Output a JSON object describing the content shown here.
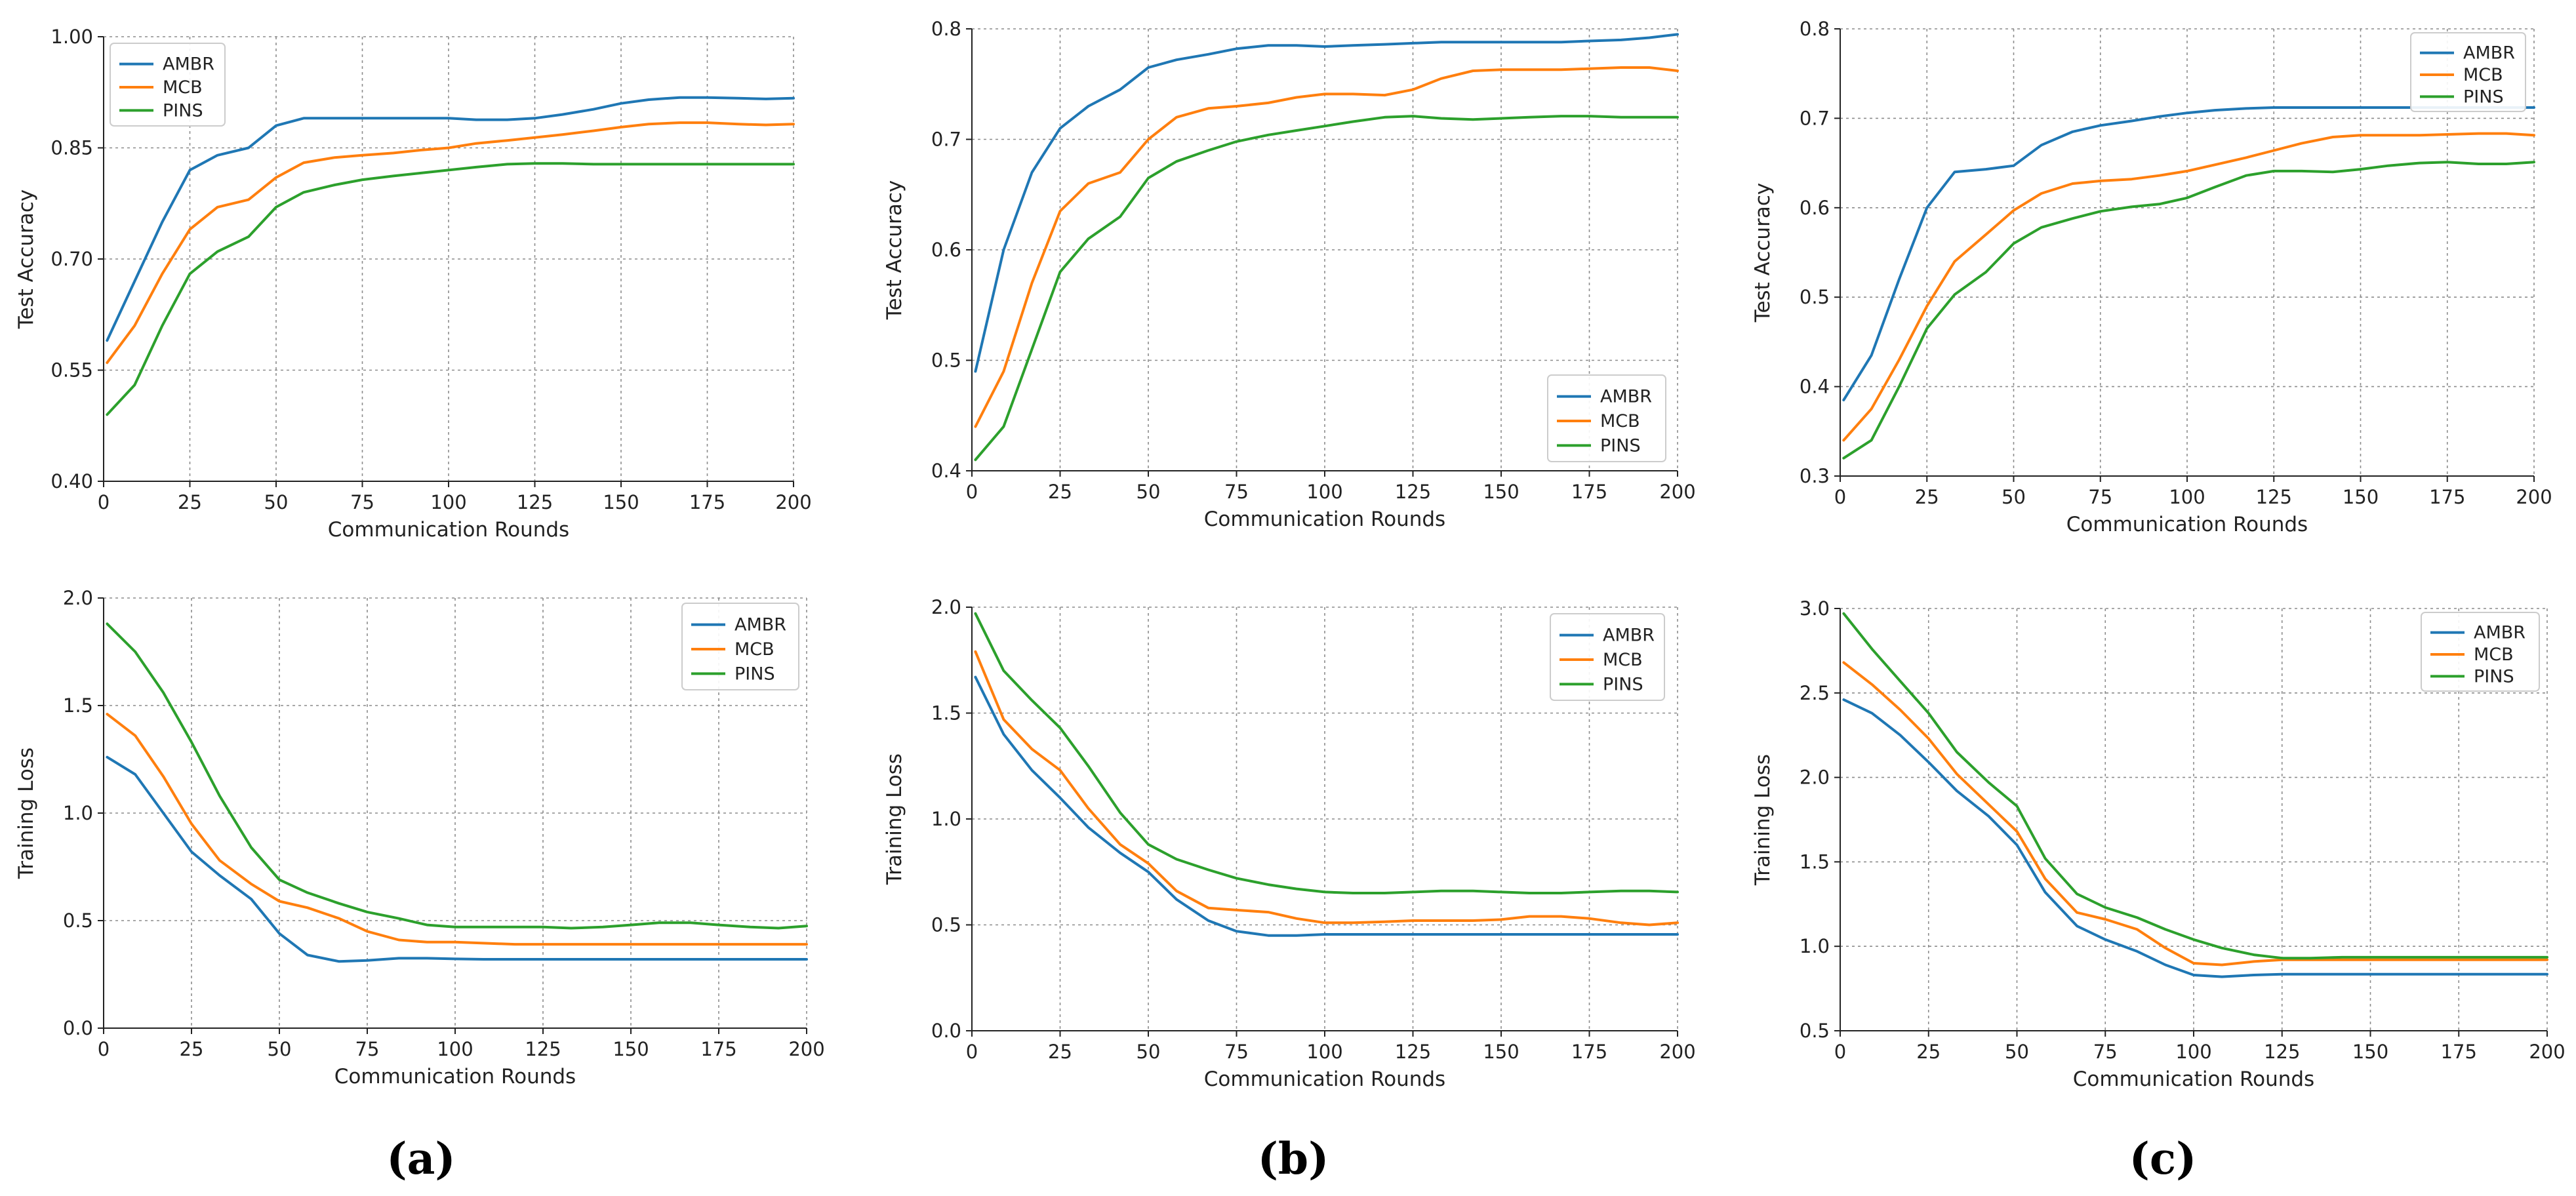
{
  "figure": {
    "captions": [
      "(a)",
      "(b)",
      "(c)"
    ]
  },
  "colors": {
    "AMBR": "#1f77b4",
    "MCB": "#ff7f0e",
    "PINS": "#2ca02c"
  },
  "chart_data": [
    {
      "id": "a-top",
      "type": "line",
      "title": "",
      "xlabel": "Communication Rounds",
      "ylabel": "Test Accuracy",
      "xlim": [
        0,
        200
      ],
      "ylim": [
        0.4,
        1.0
      ],
      "xticks": [
        0,
        25,
        50,
        75,
        100,
        125,
        150,
        175,
        200
      ],
      "xtick_labels": [
        "0",
        "25",
        "50",
        "75",
        "100",
        "125",
        "150",
        "175",
        "200"
      ],
      "yticks": [
        0.4,
        0.55,
        0.7,
        0.85,
        1.0
      ],
      "ytick_labels": [
        "0.40",
        "0.55",
        "0.70",
        "0.85",
        "1.00"
      ],
      "grid": true,
      "legend": "top-left",
      "x": [
        1,
        9,
        17,
        25,
        33,
        42,
        50,
        58,
        67,
        75,
        84,
        92,
        100,
        108,
        117,
        125,
        133,
        142,
        150,
        158,
        167,
        175,
        184,
        192,
        200
      ],
      "series": [
        {
          "name": "AMBR",
          "values": [
            0.59,
            0.67,
            0.75,
            0.82,
            0.84,
            0.85,
            0.88,
            0.89,
            0.89,
            0.89,
            0.89,
            0.89,
            0.89,
            0.888,
            0.888,
            0.89,
            0.895,
            0.902,
            0.91,
            0.915,
            0.918,
            0.918,
            0.917,
            0.916,
            0.917
          ]
        },
        {
          "name": "MCB",
          "values": [
            0.56,
            0.61,
            0.68,
            0.74,
            0.77,
            0.78,
            0.81,
            0.83,
            0.837,
            0.84,
            0.843,
            0.847,
            0.85,
            0.856,
            0.86,
            0.864,
            0.868,
            0.873,
            0.878,
            0.882,
            0.884,
            0.884,
            0.882,
            0.881,
            0.882
          ]
        },
        {
          "name": "PINS",
          "values": [
            0.49,
            0.53,
            0.61,
            0.68,
            0.71,
            0.73,
            0.77,
            0.79,
            0.8,
            0.807,
            0.812,
            0.816,
            0.82,
            0.824,
            0.828,
            0.829,
            0.829,
            0.828,
            0.828,
            0.828,
            0.828,
            0.828,
            0.828,
            0.828,
            0.828
          ]
        }
      ]
    },
    {
      "id": "b-top",
      "type": "line",
      "title": "",
      "xlabel": "Communication Rounds",
      "ylabel": "Test Accuracy",
      "xlim": [
        0,
        200
      ],
      "ylim": [
        0.4,
        0.8
      ],
      "xticks": [
        0,
        25,
        50,
        75,
        100,
        125,
        150,
        175,
        200
      ],
      "xtick_labels": [
        "0",
        "25",
        "50",
        "75",
        "100",
        "125",
        "150",
        "175",
        "200"
      ],
      "yticks": [
        0.4,
        0.5,
        0.6,
        0.7,
        0.8
      ],
      "ytick_labels": [
        "0.4",
        "0.5",
        "0.6",
        "0.7",
        "0.8"
      ],
      "grid": true,
      "legend": "bottom-right",
      "x": [
        1,
        9,
        17,
        25,
        33,
        42,
        50,
        58,
        67,
        75,
        84,
        92,
        100,
        108,
        117,
        125,
        133,
        142,
        150,
        158,
        167,
        175,
        184,
        192,
        200
      ],
      "series": [
        {
          "name": "AMBR",
          "values": [
            0.49,
            0.6,
            0.67,
            0.71,
            0.73,
            0.745,
            0.765,
            0.772,
            0.777,
            0.782,
            0.785,
            0.785,
            0.784,
            0.785,
            0.786,
            0.787,
            0.788,
            0.788,
            0.788,
            0.788,
            0.788,
            0.789,
            0.79,
            0.792,
            0.795
          ]
        },
        {
          "name": "MCB",
          "values": [
            0.44,
            0.49,
            0.57,
            0.635,
            0.66,
            0.67,
            0.7,
            0.72,
            0.728,
            0.73,
            0.733,
            0.738,
            0.741,
            0.741,
            0.74,
            0.745,
            0.755,
            0.762,
            0.763,
            0.763,
            0.763,
            0.764,
            0.765,
            0.765,
            0.762
          ]
        },
        {
          "name": "PINS",
          "values": [
            0.41,
            0.44,
            0.51,
            0.58,
            0.61,
            0.63,
            0.665,
            0.68,
            0.69,
            0.698,
            0.704,
            0.708,
            0.712,
            0.716,
            0.72,
            0.721,
            0.719,
            0.718,
            0.719,
            0.72,
            0.721,
            0.721,
            0.72,
            0.72,
            0.72
          ]
        }
      ]
    },
    {
      "id": "c-top",
      "type": "line",
      "title": "",
      "xlabel": "Communication Rounds",
      "ylabel": "Test Accuracy",
      "xlim": [
        0,
        200
      ],
      "ylim": [
        0.3,
        0.8
      ],
      "xticks": [
        0,
        25,
        50,
        75,
        100,
        125,
        150,
        175,
        200
      ],
      "xtick_labels": [
        "0",
        "25",
        "50",
        "75",
        "100",
        "125",
        "150",
        "175",
        "200"
      ],
      "yticks": [
        0.3,
        0.4,
        0.5,
        0.6,
        0.7,
        0.8
      ],
      "ytick_labels": [
        "0.3",
        "0.4",
        "0.5",
        "0.6",
        "0.7",
        "0.8"
      ],
      "grid": true,
      "legend": "top-right",
      "x": [
        1,
        9,
        17,
        25,
        33,
        42,
        50,
        58,
        67,
        75,
        84,
        92,
        100,
        108,
        117,
        125,
        133,
        142,
        150,
        158,
        167,
        175,
        184,
        192,
        200
      ],
      "series": [
        {
          "name": "AMBR",
          "values": [
            0.385,
            0.435,
            0.52,
            0.6,
            0.64,
            0.643,
            0.647,
            0.67,
            0.685,
            0.692,
            0.697,
            0.702,
            0.706,
            0.709,
            0.711,
            0.712,
            0.712,
            0.712,
            0.712,
            0.712,
            0.712,
            0.712,
            0.712,
            0.712,
            0.712
          ]
        },
        {
          "name": "MCB",
          "values": [
            0.34,
            0.375,
            0.43,
            0.49,
            0.54,
            0.57,
            0.597,
            0.616,
            0.627,
            0.63,
            0.632,
            0.636,
            0.641,
            0.648,
            0.656,
            0.664,
            0.672,
            0.679,
            0.681,
            0.681,
            0.681,
            0.682,
            0.683,
            0.683,
            0.681
          ]
        },
        {
          "name": "PINS",
          "values": [
            0.32,
            0.34,
            0.4,
            0.465,
            0.503,
            0.528,
            0.56,
            0.578,
            0.588,
            0.596,
            0.601,
            0.604,
            0.611,
            0.623,
            0.636,
            0.641,
            0.641,
            0.64,
            0.643,
            0.647,
            0.65,
            0.651,
            0.649,
            0.649,
            0.651
          ]
        }
      ]
    },
    {
      "id": "a-bottom",
      "type": "line",
      "title": "",
      "xlabel": "Communication Rounds",
      "ylabel": "Training Loss",
      "xlim": [
        0,
        200
      ],
      "ylim": [
        0.0,
        2.0
      ],
      "xticks": [
        0,
        25,
        50,
        75,
        100,
        125,
        150,
        175,
        200
      ],
      "xtick_labels": [
        "0",
        "25",
        "50",
        "75",
        "100",
        "125",
        "150",
        "175",
        "200"
      ],
      "yticks": [
        0.0,
        0.5,
        1.0,
        1.5,
        2.0
      ],
      "ytick_labels": [
        "0.0",
        "0.5",
        "1.0",
        "1.5",
        "2.0"
      ],
      "grid": true,
      "legend": "top-right",
      "x": [
        1,
        9,
        17,
        25,
        33,
        42,
        50,
        58,
        67,
        75,
        84,
        92,
        100,
        108,
        117,
        125,
        133,
        142,
        150,
        158,
        167,
        175,
        184,
        192,
        200
      ],
      "series": [
        {
          "name": "AMBR",
          "values": [
            1.26,
            1.18,
            1.0,
            0.82,
            0.71,
            0.6,
            0.44,
            0.34,
            0.31,
            0.315,
            0.325,
            0.325,
            0.322,
            0.32,
            0.32,
            0.32,
            0.32,
            0.32,
            0.32,
            0.32,
            0.32,
            0.32,
            0.32,
            0.32,
            0.32
          ]
        },
        {
          "name": "MCB",
          "values": [
            1.46,
            1.36,
            1.17,
            0.95,
            0.78,
            0.67,
            0.59,
            0.56,
            0.51,
            0.45,
            0.41,
            0.4,
            0.4,
            0.395,
            0.39,
            0.39,
            0.39,
            0.39,
            0.39,
            0.39,
            0.39,
            0.39,
            0.39,
            0.39,
            0.39
          ]
        },
        {
          "name": "PINS",
          "values": [
            1.88,
            1.75,
            1.56,
            1.33,
            1.08,
            0.84,
            0.69,
            0.63,
            0.58,
            0.54,
            0.51,
            0.48,
            0.47,
            0.47,
            0.47,
            0.47,
            0.465,
            0.47,
            0.48,
            0.49,
            0.49,
            0.48,
            0.47,
            0.465,
            0.475
          ]
        }
      ]
    },
    {
      "id": "b-bottom",
      "type": "line",
      "title": "",
      "xlabel": "Communication Rounds",
      "ylabel": "Training Loss",
      "xlim": [
        0,
        200
      ],
      "ylim": [
        0.0,
        2.0
      ],
      "xticks": [
        0,
        25,
        50,
        75,
        100,
        125,
        150,
        175,
        200
      ],
      "xtick_labels": [
        "0",
        "25",
        "50",
        "75",
        "100",
        "125",
        "150",
        "175",
        "200"
      ],
      "yticks": [
        0.0,
        0.5,
        1.0,
        1.5,
        2.0
      ],
      "ytick_labels": [
        "0.0",
        "0.5",
        "1.0",
        "1.5",
        "2.0"
      ],
      "grid": true,
      "legend": "top-right",
      "x": [
        1,
        9,
        17,
        25,
        33,
        42,
        50,
        58,
        67,
        75,
        84,
        92,
        100,
        108,
        117,
        125,
        133,
        142,
        150,
        158,
        167,
        175,
        184,
        192,
        200
      ],
      "series": [
        {
          "name": "AMBR",
          "values": [
            1.67,
            1.4,
            1.23,
            1.1,
            0.96,
            0.84,
            0.75,
            0.62,
            0.52,
            0.47,
            0.45,
            0.45,
            0.455,
            0.455,
            0.455,
            0.455,
            0.455,
            0.455,
            0.455,
            0.455,
            0.455,
            0.455,
            0.455,
            0.455,
            0.455
          ]
        },
        {
          "name": "MCB",
          "values": [
            1.79,
            1.47,
            1.33,
            1.23,
            1.05,
            0.88,
            0.79,
            0.66,
            0.58,
            0.57,
            0.56,
            0.53,
            0.51,
            0.51,
            0.515,
            0.52,
            0.52,
            0.52,
            0.525,
            0.54,
            0.54,
            0.53,
            0.51,
            0.5,
            0.51
          ]
        },
        {
          "name": "PINS",
          "values": [
            1.97,
            1.7,
            1.56,
            1.43,
            1.25,
            1.03,
            0.88,
            0.81,
            0.76,
            0.72,
            0.69,
            0.67,
            0.655,
            0.65,
            0.65,
            0.655,
            0.66,
            0.66,
            0.655,
            0.65,
            0.65,
            0.655,
            0.66,
            0.66,
            0.655
          ]
        }
      ]
    },
    {
      "id": "c-bottom",
      "type": "line",
      "title": "",
      "xlabel": "Communication Rounds",
      "ylabel": "Training Loss",
      "xlim": [
        0,
        200
      ],
      "ylim": [
        0.5,
        3.0
      ],
      "xticks": [
        0,
        25,
        50,
        75,
        100,
        125,
        150,
        175,
        200
      ],
      "xtick_labels": [
        "0",
        "25",
        "50",
        "75",
        "100",
        "125",
        "150",
        "175",
        "200"
      ],
      "yticks": [
        0.5,
        1.0,
        1.5,
        2.0,
        2.5,
        3.0
      ],
      "ytick_labels": [
        "0.5",
        "1.0",
        "1.5",
        "2.0",
        "2.5",
        "3.0"
      ],
      "grid": true,
      "legend": "top-right",
      "x": [
        1,
        9,
        17,
        25,
        33,
        42,
        50,
        58,
        67,
        75,
        84,
        92,
        100,
        108,
        117,
        125,
        133,
        142,
        150,
        158,
        167,
        175,
        184,
        192,
        200
      ],
      "series": [
        {
          "name": "AMBR",
          "values": [
            2.46,
            2.38,
            2.25,
            2.09,
            1.92,
            1.77,
            1.6,
            1.32,
            1.12,
            1.04,
            0.97,
            0.89,
            0.83,
            0.82,
            0.83,
            0.835,
            0.835,
            0.835,
            0.835,
            0.835,
            0.835,
            0.835,
            0.835,
            0.835,
            0.835
          ]
        },
        {
          "name": "MCB",
          "values": [
            2.68,
            2.55,
            2.4,
            2.23,
            2.02,
            1.84,
            1.68,
            1.4,
            1.2,
            1.16,
            1.1,
            0.99,
            0.9,
            0.89,
            0.91,
            0.92,
            0.92,
            0.92,
            0.92,
            0.92,
            0.92,
            0.92,
            0.92,
            0.92,
            0.92
          ]
        },
        {
          "name": "PINS",
          "values": [
            2.97,
            2.76,
            2.57,
            2.38,
            2.15,
            1.97,
            1.83,
            1.52,
            1.31,
            1.23,
            1.17,
            1.1,
            1.04,
            0.99,
            0.95,
            0.93,
            0.93,
            0.935,
            0.935,
            0.935,
            0.935,
            0.935,
            0.935,
            0.935,
            0.935
          ]
        }
      ]
    }
  ]
}
